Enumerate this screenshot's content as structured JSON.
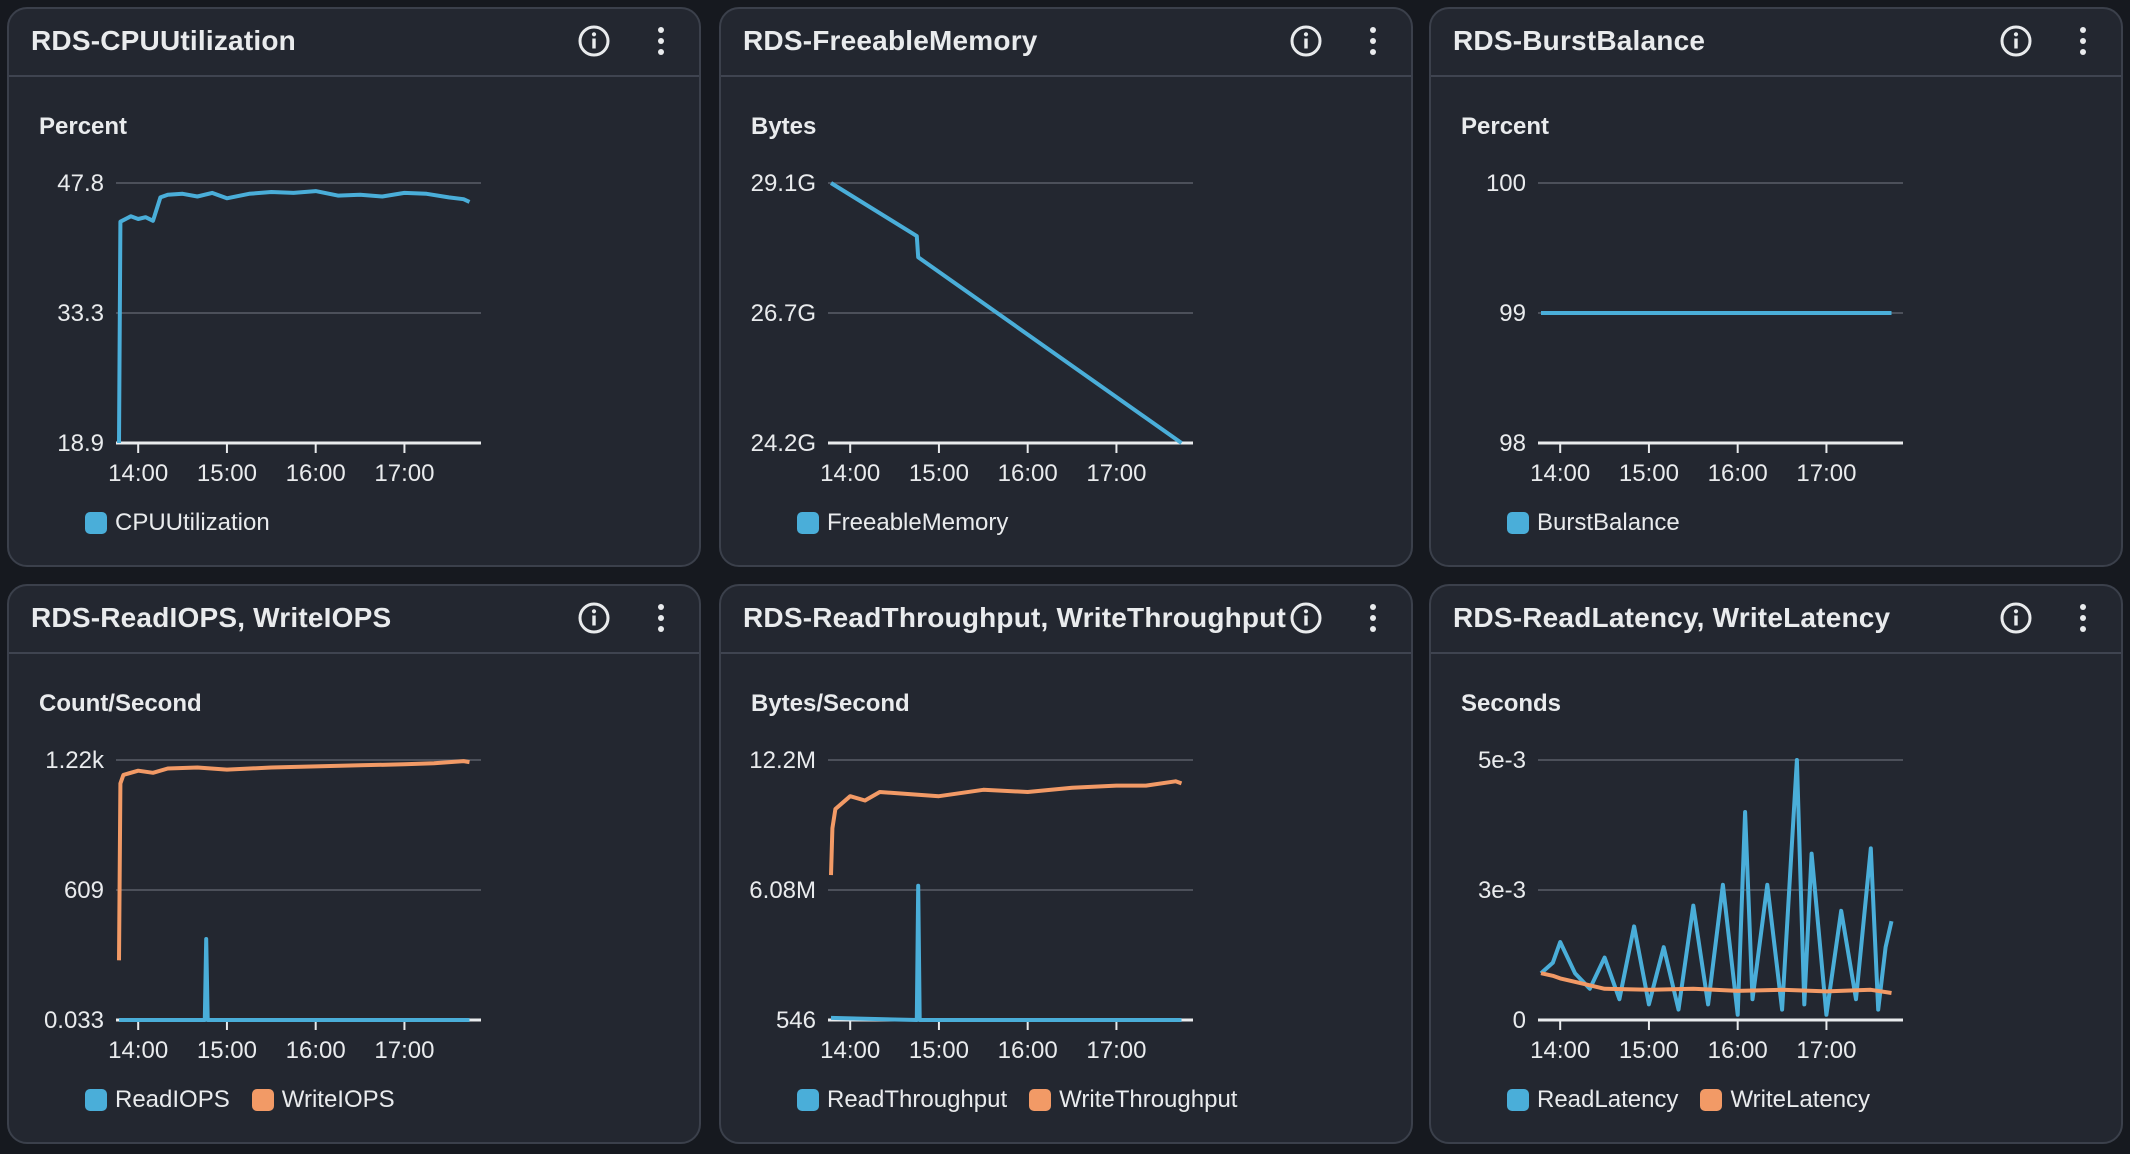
{
  "colors": {
    "blue": "#4aaed9",
    "orange": "#f29a66",
    "gridline": "#5a5f69",
    "axis": "#e9ebed"
  },
  "widgets": [
    {
      "title": "RDS-CPUUtilization",
      "info_icon": "info-circle-icon",
      "menu_icon": "more-vertical-icon",
      "unit": "Percent",
      "chart_data": {
        "type": "line",
        "ylabel": "Percent",
        "y_ticks": [
          "47.8",
          "33.3",
          "18.9"
        ],
        "ylim": [
          18.9,
          47.8
        ],
        "x_ticks": [
          "14:00",
          "15:00",
          "16:00",
          "17:00"
        ],
        "xlim": [
          "13:45",
          "17:45"
        ],
        "grid": true,
        "legend": "bottom-left",
        "series": [
          {
            "name": "CPUUtilization",
            "color": "#4aaed9",
            "x": [
              "13:47",
              "13:48",
              "13:55",
              "14:00",
              "14:05",
              "14:10",
              "14:15",
              "14:20",
              "14:30",
              "14:40",
              "14:50",
              "15:00",
              "15:15",
              "15:30",
              "15:45",
              "16:00",
              "16:15",
              "16:30",
              "16:45",
              "17:00",
              "17:15",
              "17:30",
              "17:40",
              "17:44"
            ],
            "y": [
              18.9,
              43.5,
              44.1,
              43.8,
              44.0,
              43.6,
              46.2,
              46.5,
              46.6,
              46.3,
              46.7,
              46.1,
              46.6,
              46.8,
              46.7,
              46.9,
              46.4,
              46.5,
              46.3,
              46.7,
              46.6,
              46.2,
              46.0,
              45.7
            ]
          }
        ]
      }
    },
    {
      "title": "RDS-FreeableMemory",
      "info_icon": "info-circle-icon",
      "menu_icon": "more-vertical-icon",
      "unit": "Bytes",
      "chart_data": {
        "type": "line",
        "ylabel": "Bytes",
        "y_ticks": [
          "29.1G",
          "26.7G",
          "24.2G"
        ],
        "ylim": [
          24.2,
          29.1
        ],
        "x_ticks": [
          "14:00",
          "15:00",
          "16:00",
          "17:00"
        ],
        "xlim": [
          "13:45",
          "17:45"
        ],
        "grid": true,
        "legend": "bottom-left",
        "series": [
          {
            "name": "FreeableMemory",
            "color": "#4aaed9",
            "x": [
              "13:47",
              "14:45",
              "14:46",
              "17:44"
            ],
            "y": [
              29.1,
              28.1,
              27.7,
              24.2
            ]
          }
        ]
      }
    },
    {
      "title": "RDS-BurstBalance",
      "info_icon": "info-circle-icon",
      "menu_icon": "more-vertical-icon",
      "unit": "Percent",
      "chart_data": {
        "type": "line",
        "ylabel": "Percent",
        "y_ticks": [
          "100",
          "99",
          "98"
        ],
        "ylim": [
          98,
          100
        ],
        "x_ticks": [
          "14:00",
          "15:00",
          "16:00",
          "17:00"
        ],
        "xlim": [
          "13:45",
          "17:45"
        ],
        "grid": true,
        "legend": "bottom-left",
        "series": [
          {
            "name": "BurstBalance",
            "color": "#4aaed9",
            "x": [
              "13:47",
              "17:44"
            ],
            "y": [
              99,
              99
            ]
          }
        ]
      }
    },
    {
      "title": "RDS-ReadIOPS, WriteIOPS",
      "info_icon": "info-circle-icon",
      "menu_icon": "more-vertical-icon",
      "unit": "Count/Second",
      "chart_data": {
        "type": "line",
        "ylabel": "Count/Second",
        "y_ticks": [
          "1.22k",
          "609",
          "0.033"
        ],
        "ylim": [
          0.033,
          1220
        ],
        "x_ticks": [
          "14:00",
          "15:00",
          "16:00",
          "17:00"
        ],
        "xlim": [
          "13:45",
          "17:45"
        ],
        "grid": true,
        "legend": "bottom-left",
        "series": [
          {
            "name": "ReadIOPS",
            "color": "#4aaed9",
            "x": [
              "13:47",
              "14:45",
              "14:46",
              "14:47",
              "17:44"
            ],
            "y": [
              0.033,
              0.033,
              380,
              0.033,
              0.033
            ]
          },
          {
            "name": "WriteIOPS",
            "color": "#f29a66",
            "x": [
              "13:47",
              "13:48",
              "13:50",
              "14:00",
              "14:10",
              "14:20",
              "14:40",
              "15:00",
              "15:30",
              "16:00",
              "16:30",
              "17:00",
              "17:20",
              "17:40",
              "17:44"
            ],
            "y": [
              280,
              1110,
              1150,
              1170,
              1160,
              1180,
              1185,
              1175,
              1185,
              1190,
              1195,
              1200,
              1205,
              1215,
              1210
            ]
          }
        ]
      }
    },
    {
      "title": "RDS-ReadThroughput, WriteThroughput",
      "info_icon": "info-circle-icon",
      "menu_icon": "more-vertical-icon",
      "unit": "Bytes/Second",
      "chart_data": {
        "type": "line",
        "ylabel": "Bytes/Second",
        "y_ticks": [
          "12.2M",
          "6.08M",
          "546"
        ],
        "ylim": [
          0.000546,
          12.2
        ],
        "x_ticks": [
          "14:00",
          "15:00",
          "16:00",
          "17:00"
        ],
        "xlim": [
          "13:45",
          "17:45"
        ],
        "grid": true,
        "legend": "bottom-left",
        "series": [
          {
            "name": "ReadThroughput",
            "color": "#4aaed9",
            "x": [
              "13:47",
              "14:45",
              "14:46",
              "14:47",
              "17:44"
            ],
            "y": [
              0.1,
              0.000546,
              6.3,
              0.000546,
              0.000546
            ]
          },
          {
            "name": "WriteThroughput",
            "color": "#f29a66",
            "x": [
              "13:47",
              "13:48",
              "13:50",
              "14:00",
              "14:10",
              "14:20",
              "14:40",
              "15:00",
              "15:30",
              "16:00",
              "16:30",
              "17:00",
              "17:20",
              "17:40",
              "17:44"
            ],
            "y": [
              6.8,
              9.0,
              9.9,
              10.5,
              10.3,
              10.7,
              10.6,
              10.5,
              10.8,
              10.7,
              10.9,
              11.0,
              11.0,
              11.2,
              11.1
            ]
          }
        ]
      }
    },
    {
      "title": "RDS-ReadLatency, WriteLatency",
      "info_icon": "info-circle-icon",
      "menu_icon": "more-vertical-icon",
      "unit": "Seconds",
      "chart_data": {
        "type": "line",
        "ylabel": "Seconds",
        "y_ticks": [
          "5e-3",
          "3e-3",
          "0"
        ],
        "ylim": [
          0,
          0.005
        ],
        "x_ticks": [
          "14:00",
          "15:00",
          "16:00",
          "17:00"
        ],
        "xlim": [
          "13:45",
          "17:45"
        ],
        "grid": true,
        "legend": "bottom-left",
        "series": [
          {
            "name": "ReadLatency",
            "color": "#4aaed9",
            "x": [
              "13:47",
              "13:55",
              "14:00",
              "14:10",
              "14:20",
              "14:30",
              "14:40",
              "14:50",
              "15:00",
              "15:10",
              "15:20",
              "15:30",
              "15:40",
              "15:50",
              "16:00",
              "16:05",
              "16:10",
              "16:20",
              "16:30",
              "16:40",
              "16:45",
              "16:50",
              "17:00",
              "17:10",
              "17:20",
              "17:30",
              "17:35",
              "17:40",
              "17:44"
            ],
            "y": [
              0.0009,
              0.0011,
              0.0015,
              0.0009,
              0.0006,
              0.0012,
              0.0004,
              0.0018,
              0.0003,
              0.0014,
              0.0002,
              0.0022,
              0.0003,
              0.0026,
              0.0001,
              0.004,
              0.0004,
              0.0026,
              0.0002,
              0.005,
              0.0003,
              0.0032,
              0.0001,
              0.0021,
              0.0004,
              0.0033,
              0.0002,
              0.0014,
              0.0019
            ]
          },
          {
            "name": "WriteLatency",
            "color": "#f29a66",
            "x": [
              "13:47",
              "13:55",
              "14:00",
              "14:15",
              "14:30",
              "15:00",
              "15:30",
              "16:00",
              "16:30",
              "17:00",
              "17:30",
              "17:44"
            ],
            "y": [
              0.0009,
              0.00085,
              0.0008,
              0.0007,
              0.0006,
              0.00058,
              0.0006,
              0.00056,
              0.00058,
              0.00055,
              0.00058,
              0.00052
            ]
          }
        ]
      }
    }
  ]
}
